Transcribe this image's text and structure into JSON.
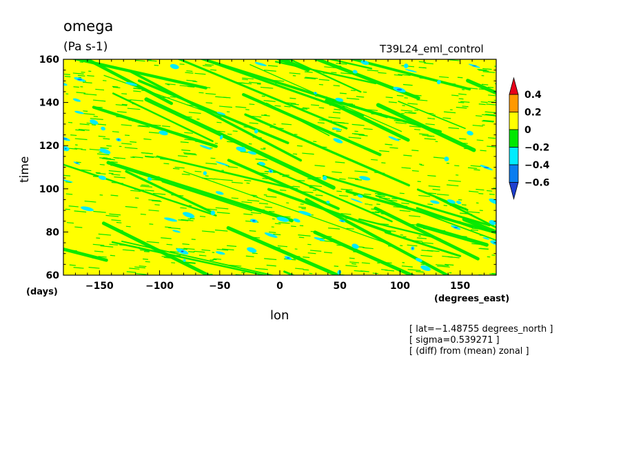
{
  "chart_data": {
    "type": "heatmap",
    "title": "omega",
    "subtitle": "(Pa s-1)",
    "run_label": "T39L24_eml_control",
    "xlabel": "lon",
    "ylabel": "time",
    "x_unit_label": "(degrees_east)",
    "y_unit_label": "(days)",
    "xlim": [
      -180,
      180
    ],
    "ylim": [
      60,
      160
    ],
    "x_ticks": [
      -150,
      -100,
      -50,
      0,
      50,
      100,
      150
    ],
    "x_tick_labels": [
      "−150",
      "−100",
      "−50",
      "0",
      "50",
      "100",
      "150"
    ],
    "y_ticks": [
      60,
      80,
      100,
      120,
      140,
      160
    ],
    "y_tick_labels": [
      "60",
      "80",
      "100",
      "120",
      "140",
      "160"
    ],
    "grid": false,
    "legend_placement": "right",
    "colorbar": {
      "levels": [
        -0.6,
        -0.4,
        -0.2,
        0,
        0.2,
        0.4
      ],
      "labels": [
        "0.4",
        "0.2",
        "0",
        "−0.2",
        "−0.4",
        "−0.6"
      ],
      "colors": [
        "#1f3fcf",
        "#0a7df0",
        "#00ecff",
        "#00e800",
        "#ffff00",
        "#ff9900",
        "#e8001a"
      ],
      "dominant_band": "0 to 0.2 (yellow)"
    },
    "features": "Predominantly yellow field (0 to 0.2) with numerous thin green streaks (-0.2 to 0) sloping downward from west to east, and scattered cyan/blue patches (below -0.2)"
  },
  "annotations": [
    "[ lat=−1.48755 degrees_north ]",
    "[ sigma=0.539271 ]",
    "[ (diff) from (mean) zonal ]"
  ]
}
